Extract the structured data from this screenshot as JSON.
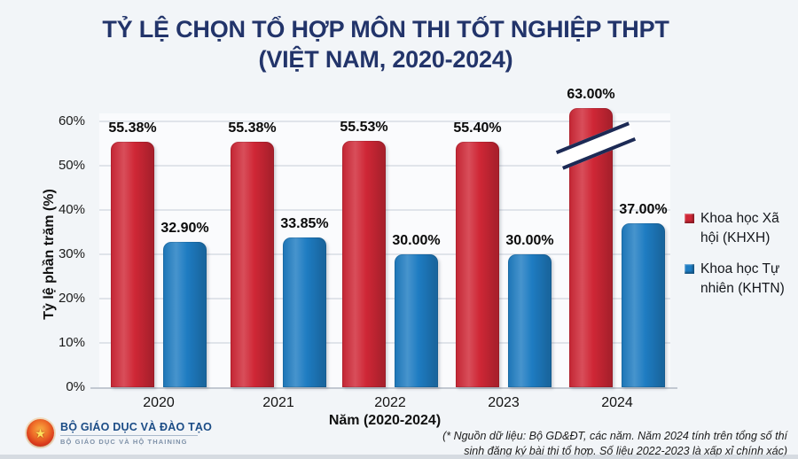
{
  "title": {
    "line1": "TỶ LỆ CHỌN TỔ HỢP MÔN THI TỐT NGHIỆP THPT",
    "line2": "(VIỆT NAM, 2020-2024)"
  },
  "chart_data": {
    "type": "bar",
    "title": "TỶ LỆ CHỌN TỔ HỢP MÔN THI TỐT NGHIỆP THPT (VIỆT NAM, 2020-2024)",
    "categories": [
      "2020",
      "2021",
      "2022",
      "2023",
      "2024"
    ],
    "series": [
      {
        "name": "Khoa học Xã hội (KHXH)",
        "legend_lines": [
          "Khoa học Xã",
          "hội (KHXH)"
        ],
        "color": "#cf2736",
        "values": [
          55.38,
          55.38,
          55.53,
          55.4,
          63.0
        ],
        "data_labels": [
          "55.38%",
          "55.38%",
          "55.53%",
          "55.40%",
          "63.00%"
        ]
      },
      {
        "name": "Khoa học Tự nhiên (KHTN)",
        "legend_lines": [
          "Khoa học Tự",
          "nhiên (KHTN)"
        ],
        "color": "#1e7cc2",
        "values": [
          32.9,
          33.85,
          30.0,
          30.0,
          37.0
        ],
        "data_labels": [
          "32.90%",
          "33.85%",
          "30.00%",
          "30.00%",
          "37.00%"
        ]
      }
    ],
    "xlabel": "Năm (2020-2024)",
    "ylabel": "Tỷ lệ phần trăm (%)",
    "ylim": [
      0,
      60
    ],
    "yticks": [
      "0%",
      "10%",
      "20%",
      "30%",
      "40%",
      "50%",
      "60%"
    ],
    "grid": true,
    "legend_position": "right",
    "annotations": [
      {
        "type": "axis-break",
        "series": "Khoa học Xã hội (KHXH)",
        "category": "2024",
        "note": "63% bar exceeds 60% axis maximum; double slash break marks drawn across bar"
      }
    ]
  },
  "colors": {
    "title_navy": "#22346a",
    "khxh_red": "#cf2736",
    "khtn_blue": "#1e7cc2",
    "break_mark_navy": "#1c2a55",
    "background": "#f2f5f8"
  },
  "footer": {
    "logo": {
      "line1": "BỘ GIÁO DỤC VÀ ĐÀO TẠO",
      "line2": "BỘ GIÁO DỤC VÀ HỘ THAINING"
    },
    "source": {
      "line1": "(* Nguồn dữ liệu: Bộ GD&ĐT, các năm. Năm 2024 tính trên tổng số thí",
      "line2": "sinh đăng ký bài thi tổ hợp. Số liệu 2022-2023 là xấp xỉ chính xác)"
    }
  }
}
